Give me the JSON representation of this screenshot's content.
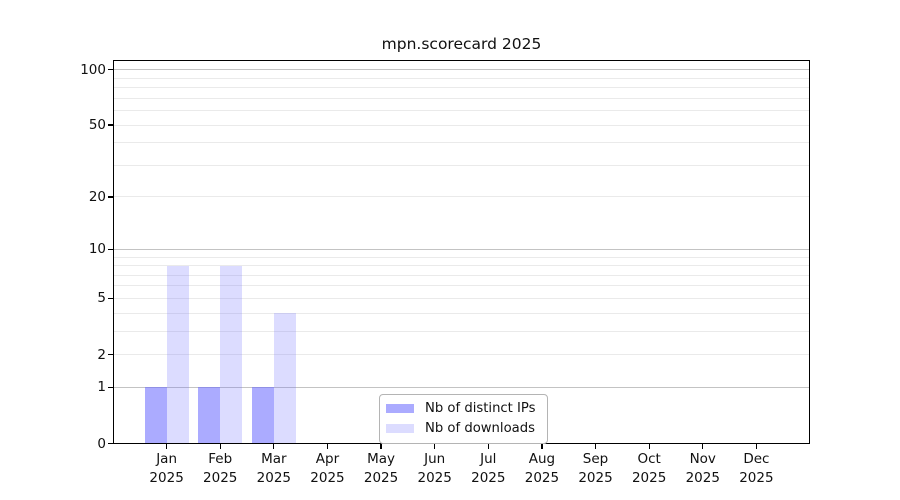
{
  "chart_data": {
    "type": "bar",
    "title": "mpn.scorecard 2025",
    "categories": [
      "Jan",
      "Feb",
      "Mar",
      "Apr",
      "May",
      "Jun",
      "Jul",
      "Aug",
      "Sep",
      "Oct",
      "Nov",
      "Dec"
    ],
    "category_year": "2025",
    "series": [
      {
        "name": "Nb of distinct IPs",
        "color": "rgba(102,102,255,0.55)",
        "values": [
          1,
          1,
          1,
          0,
          0,
          0,
          0,
          0,
          0,
          0,
          0,
          0
        ]
      },
      {
        "name": "Nb of downloads",
        "color": "rgba(102,102,255,0.23)",
        "values": [
          8,
          8,
          4,
          0,
          0,
          0,
          0,
          0,
          0,
          0,
          0,
          0
        ]
      }
    ],
    "yscale": "log10(1+y)",
    "ylim": [
      0,
      116
    ],
    "yticks": [
      0,
      1,
      2,
      5,
      10,
      20,
      50,
      100
    ],
    "major_gridlines": [
      1,
      10,
      100
    ],
    "minor_gridlines": [
      2,
      3,
      4,
      5,
      6,
      7,
      8,
      9,
      20,
      30,
      40,
      50,
      60,
      70,
      80,
      90
    ],
    "grid": "on",
    "legend_position": "bottom-center",
    "colors": {
      "grid_major": "#c3c3c3",
      "grid_minor": "#eaeaea",
      "axis": "#000000",
      "background": "#ffffff"
    }
  }
}
